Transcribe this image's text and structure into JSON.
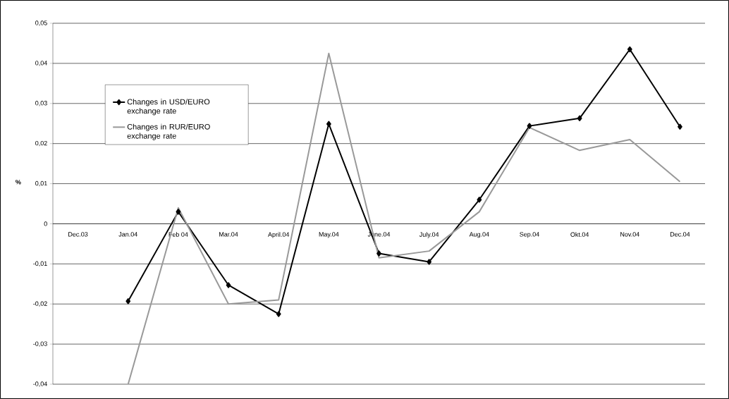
{
  "chart_data": {
    "type": "line",
    "ylabel": "%",
    "categories": [
      "Dec.03",
      "Jan.04",
      "Feb 04",
      "Mar.04",
      "April.04",
      "May.04",
      "June.04",
      "July.04",
      "Aug.04",
      "Sep.04",
      "Okt.04",
      "Nov.04",
      "Dec.04"
    ],
    "series": [
      {
        "name": "Changes in USD/EURO exchange rate",
        "color": "#000000",
        "marker": "diamond",
        "values": [
          null,
          -0.0193,
          0.003,
          -0.0153,
          -0.0225,
          0.0249,
          -0.0074,
          -0.0095,
          0.006,
          0.0244,
          0.0263,
          0.0435,
          0.0242
        ]
      },
      {
        "name": "Changes in RUR/EURO exchange rate",
        "color": "#999999",
        "marker": "none",
        "values": [
          null,
          -0.04,
          0.004,
          -0.02,
          -0.019,
          0.0425,
          -0.0085,
          -0.0068,
          0.003,
          0.024,
          0.0183,
          0.021,
          0.0105
        ]
      }
    ],
    "ylim": [
      -0.04,
      0.05
    ],
    "yticks": [
      {
        "value": -0.04,
        "label": "-0,04"
      },
      {
        "value": -0.03,
        "label": "-0,03"
      },
      {
        "value": -0.02,
        "label": "-0,02"
      },
      {
        "value": -0.01,
        "label": "-0,01"
      },
      {
        "value": 0,
        "label": "0"
      },
      {
        "value": 0.01,
        "label": "0,01"
      },
      {
        "value": 0.02,
        "label": "0,02"
      },
      {
        "value": 0.03,
        "label": "0,03"
      },
      {
        "value": 0.04,
        "label": "0,04"
      },
      {
        "value": 0.05,
        "label": "0,05"
      }
    ],
    "grid": "y",
    "legend": "top left",
    "line_style": "solid"
  }
}
